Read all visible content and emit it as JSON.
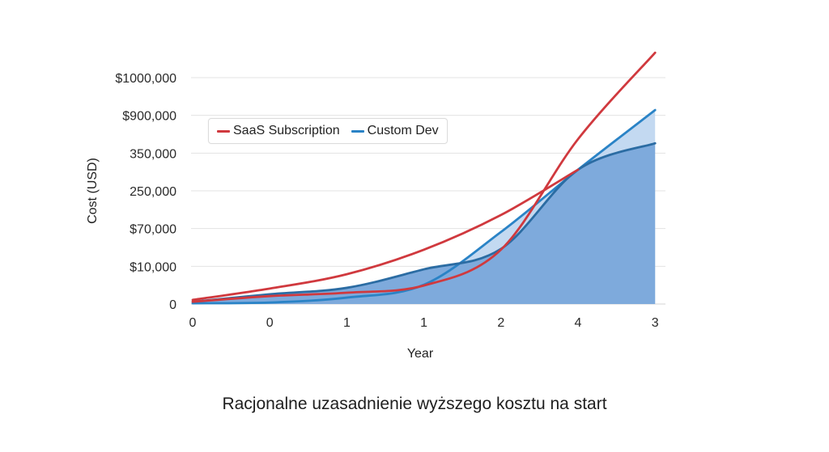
{
  "chart_data": {
    "type": "line",
    "title": "",
    "caption": "Racjonalne uzasadnienie wyższego kosztu na start",
    "xlabel": "Year",
    "ylabel": "Cost (USD)",
    "x_tick_labels": [
      "0",
      "0",
      "1",
      "1",
      "2",
      "4",
      "3"
    ],
    "y_tick_labels": [
      "0",
      "$10,000",
      "$70,000",
      "250,000",
      "350,000",
      "$900,000",
      "$1000,000"
    ],
    "y_units_note": "values expressed in gridline units (0 = '0' tick, 6 = '$1000,000' tick); tick labels are non-linear as printed",
    "ylim": [
      0,
      6.8
    ],
    "grid": true,
    "legend_position": "upper-left inside",
    "legend": [
      "SaaS Subscription",
      "Custom Dev"
    ],
    "series": [
      {
        "name": "SaaS Subscription",
        "role": "upper-gentle",
        "color": "#d0393e",
        "x": [
          0,
          1,
          2,
          3,
          4,
          5
        ],
        "values": [
          0.11,
          0.41,
          0.79,
          1.44,
          2.36,
          3.56
        ]
      },
      {
        "name": "SaaS Subscription",
        "role": "steep",
        "color": "#d0393e",
        "x": [
          0,
          1,
          2,
          3,
          4,
          5,
          6
        ],
        "values": [
          0.06,
          0.21,
          0.3,
          0.49,
          1.44,
          4.37,
          6.66
        ]
      },
      {
        "name": "Custom Dev",
        "role": "light-line",
        "color": "#2a83c6",
        "x": [
          0,
          1,
          2,
          3,
          4,
          5,
          6
        ],
        "values": [
          0.02,
          0.04,
          0.17,
          0.51,
          1.91,
          3.56,
          5.14
        ]
      },
      {
        "name": "Custom Dev",
        "role": "dark-line-filled",
        "color": "#2b6ca3",
        "x": [
          0,
          1,
          2,
          3,
          4,
          5,
          6
        ],
        "values": [
          0.06,
          0.26,
          0.43,
          0.92,
          1.46,
          3.56,
          4.26
        ]
      }
    ],
    "colors": {
      "saas": "#d0393e",
      "custom_light": "#2a83c6",
      "custom_dark": "#2b6ca3",
      "fill_dark": "#7eaadc",
      "fill_light": "#bcd5ef",
      "grid": "#e3e3e3"
    }
  }
}
